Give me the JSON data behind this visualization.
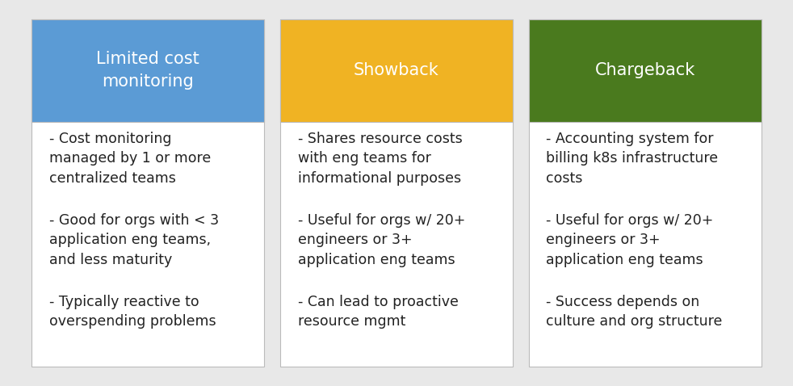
{
  "columns": [
    {
      "title": "Limited cost\nmonitoring",
      "header_color": "#5B9BD5",
      "text_color": "#FFFFFF",
      "bullet_points": [
        "- Cost monitoring\nmanaged by 1 or more\ncentralized teams",
        "- Good for orgs with < 3\napplication eng teams,\nand less maturity",
        "- Typically reactive to\noverspending problems"
      ]
    },
    {
      "title": "Showback",
      "header_color": "#F0B323",
      "text_color": "#FFFFFF",
      "bullet_points": [
        "- Shares resource costs\nwith eng teams for\ninformational purposes",
        "- Useful for orgs w/ 20+\nengineers or 3+\napplication eng teams",
        "- Can lead to proactive\nresource mgmt"
      ]
    },
    {
      "title": "Chargeback",
      "header_color": "#4A7A1E",
      "text_color": "#FFFFFF",
      "bullet_points": [
        "- Accounting system for\nbilling k8s infrastructure\ncosts",
        "- Useful for orgs w/ 20+\nengineers or 3+\napplication eng teams",
        "- Success depends on\nculture and org structure"
      ]
    }
  ],
  "bg_color": "#FFFFFF",
  "outer_bg_color": "#E8E8E8",
  "border_color": "#BBBBBB",
  "body_text_color": "#222222",
  "header_font_size": 15,
  "body_font_size": 12.5,
  "fig_width": 9.82,
  "fig_height": 4.78
}
